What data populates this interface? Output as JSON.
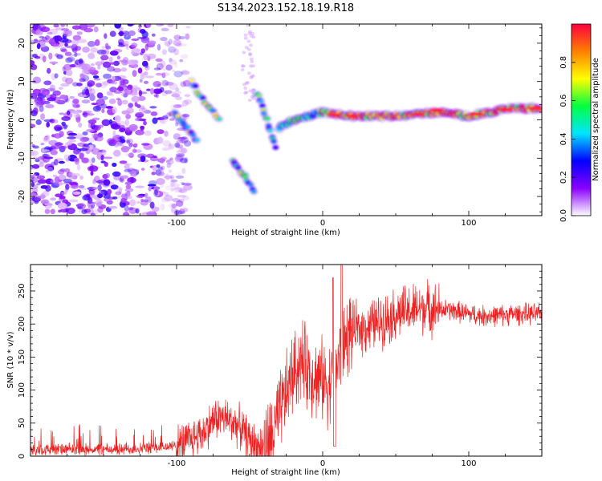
{
  "page_title": "S134.2023.152.18.19.R18",
  "chart_data": [
    {
      "type": "heatmap",
      "xlabel": "Height of straight line (km)",
      "ylabel": "Frequency (Hz)",
      "xlim": [
        -200,
        150
      ],
      "ylim": [
        -25,
        25
      ],
      "x_ticks": [
        -100,
        0,
        100
      ],
      "y_ticks": [
        -20,
        -10,
        0,
        10,
        20
      ],
      "colorbar": {
        "label": "Normalized spectral amplitude",
        "range": [
          0,
          1
        ],
        "ticks": [
          "0.0",
          "0.2",
          "0.4",
          "0.6",
          "0.8"
        ],
        "colormap": "gist_rainbow",
        "colors": [
          "#ffffff",
          "#8a00ff",
          "#0000ff",
          "#00e5ff",
          "#00ff40",
          "#ffff00",
          "#ff8000",
          "#ff0040"
        ]
      },
      "features": [
        {
          "name": "noise",
          "x_range": [
            -200,
            -100
          ],
          "y_range": [
            -25,
            25
          ]
        },
        {
          "name": "descending-streak-1",
          "points": [
            [
              -102,
              2
            ],
            [
              -95,
              -1
            ],
            [
              -85,
              -6
            ]
          ]
        },
        {
          "name": "descending-streak-2",
          "points": [
            [
              -90,
              10
            ],
            [
              -80,
              4
            ],
            [
              -70,
              0
            ]
          ]
        },
        {
          "name": "descending-streak-3",
          "points": [
            [
              -62,
              -11
            ],
            [
              -55,
              -14
            ],
            [
              -46,
              -19
            ]
          ]
        },
        {
          "name": "descending-streak-4",
          "points": [
            [
              -45,
              7
            ],
            [
              -38,
              0
            ],
            [
              -32,
              -8
            ]
          ]
        },
        {
          "name": "main-trace",
          "points": [
            [
              -30,
              -2
            ],
            [
              -20,
              0
            ],
            [
              -10,
              1
            ],
            [
              0,
              2
            ],
            [
              20,
              1
            ],
            [
              50,
              1
            ],
            [
              80,
              2
            ],
            [
              100,
              1
            ],
            [
              130,
              3
            ],
            [
              150,
              3
            ]
          ]
        }
      ]
    },
    {
      "type": "line",
      "xlabel": "Height of straight line (km)",
      "ylabel": "SNR (10 * v/v)",
      "xlim": [
        -200,
        150
      ],
      "ylim": [
        0,
        290
      ],
      "x_ticks": [
        -100,
        0,
        100
      ],
      "y_ticks": [
        0,
        50,
        100,
        150,
        200,
        250
      ],
      "series": [
        {
          "color": "#ee2222",
          "x": [
            -200,
            -180,
            -160,
            -140,
            -120,
            -100,
            -90,
            -80,
            -75,
            -70,
            -65,
            -60,
            -55,
            -50,
            -45,
            -40,
            -35,
            -30,
            -25,
            -20,
            -15,
            -10,
            -5,
            0,
            5,
            10,
            15,
            20,
            30,
            40,
            50,
            60,
            70,
            80,
            90,
            100,
            110,
            120,
            130,
            140,
            150
          ],
          "y": [
            10,
            10,
            10,
            10,
            12,
            15,
            25,
            40,
            55,
            60,
            55,
            50,
            40,
            25,
            15,
            15,
            25,
            60,
            95,
            125,
            145,
            130,
            120,
            115,
            110,
            140,
            175,
            190,
            195,
            205,
            215,
            220,
            225,
            222,
            220,
            215,
            212,
            213,
            215,
            215,
            215
          ]
        }
      ]
    }
  ]
}
